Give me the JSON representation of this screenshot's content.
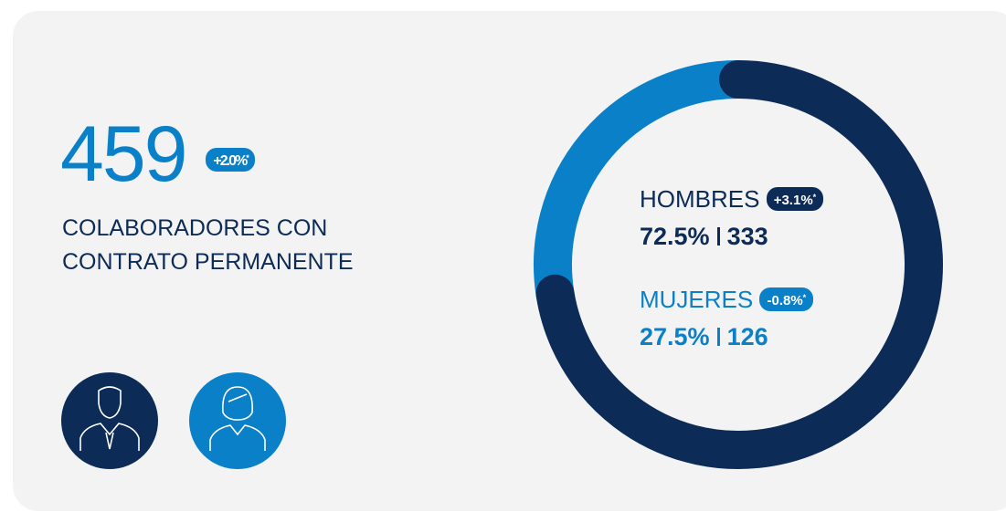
{
  "header": {
    "total": 459,
    "change": {
      "text": "+2.0%",
      "note": "*"
    },
    "subtitle": "COLABORADORES CON CONTRATO PERMANENTE"
  },
  "chart_data": {
    "type": "donut",
    "categories": [
      "HOMBRES",
      "MUJERES"
    ],
    "values": [
      72.5,
      27.5
    ],
    "value_labels": [
      "72.5%",
      "27.5%"
    ],
    "counts": [
      333,
      126
    ],
    "changes": [
      {
        "text": "+3.1%",
        "note": "*"
      },
      {
        "text": "-0.8%",
        "note": "*"
      }
    ],
    "colors": [
      "#0c2b56",
      "#0a80c9"
    ]
  }
}
